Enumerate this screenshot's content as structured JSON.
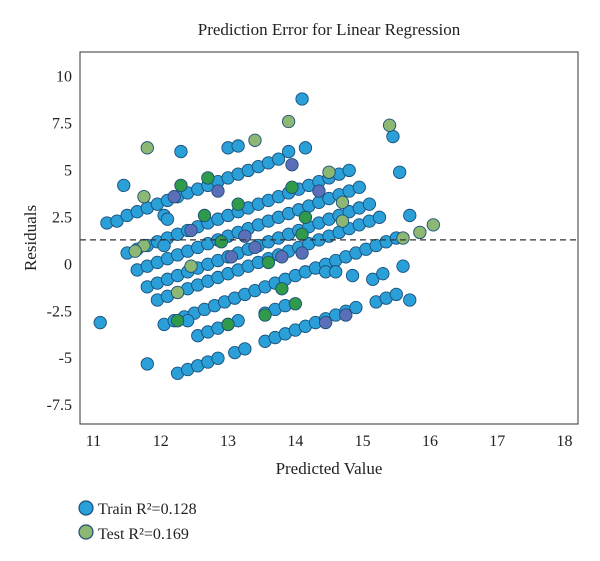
{
  "chart_data": {
    "type": "scatter",
    "title": "Prediction Error for Linear Regression",
    "xlabel": "Predicted Value",
    "ylabel": "Residuals",
    "xlim": [
      10.8,
      18.2
    ],
    "ylim": [
      -8.5,
      11.3
    ],
    "xticks": [
      "11",
      "12",
      "13",
      "14",
      "15",
      "16",
      "17",
      "18"
    ],
    "yticks": [
      "10",
      "7.5",
      "5",
      "2.5",
      "0",
      "-2.5",
      "-5",
      "-7.5"
    ],
    "reference_line": {
      "y": 1.3,
      "style": "dashed"
    },
    "grid": false,
    "legend_position": "bottom-left",
    "colors": {
      "train": "#2a9fd8",
      "train_edge": "#1a4f7a",
      "test": "#8db873",
      "overlap_green": "#2e9a4a",
      "overlap_purple": "#5a6fb8",
      "line": "#333333"
    },
    "series": [
      {
        "name": "Train R²=0.128",
        "points": [
          [
            11.1,
            -3.1
          ],
          [
            11.2,
            2.2
          ],
          [
            11.35,
            2.3
          ],
          [
            11.45,
            4.2
          ],
          [
            11.5,
            2.6
          ],
          [
            11.65,
            2.8
          ],
          [
            11.8,
            3.0
          ],
          [
            11.95,
            3.2
          ],
          [
            12.1,
            3.4
          ],
          [
            12.25,
            3.6
          ],
          [
            12.4,
            3.8
          ],
          [
            12.55,
            4.0
          ],
          [
            12.7,
            4.2
          ],
          [
            12.85,
            4.4
          ],
          [
            13.0,
            4.6
          ],
          [
            13.15,
            4.8
          ],
          [
            13.3,
            5.0
          ],
          [
            13.45,
            5.2
          ],
          [
            13.6,
            5.4
          ],
          [
            13.75,
            5.6
          ],
          [
            11.5,
            0.6
          ],
          [
            11.65,
            0.8
          ],
          [
            11.8,
            1.0
          ],
          [
            11.95,
            1.2
          ],
          [
            12.1,
            1.4
          ],
          [
            12.25,
            1.6
          ],
          [
            12.4,
            1.8
          ],
          [
            12.55,
            2.0
          ],
          [
            12.7,
            2.2
          ],
          [
            12.85,
            2.4
          ],
          [
            13.0,
            2.6
          ],
          [
            13.15,
            2.8
          ],
          [
            13.3,
            3.0
          ],
          [
            13.45,
            3.2
          ],
          [
            13.6,
            3.4
          ],
          [
            13.75,
            3.6
          ],
          [
            13.9,
            3.8
          ],
          [
            14.05,
            4.0
          ],
          [
            14.2,
            4.2
          ],
          [
            14.35,
            4.4
          ],
          [
            14.5,
            4.6
          ],
          [
            14.65,
            4.8
          ],
          [
            14.8,
            5.0
          ],
          [
            11.65,
            -0.3
          ],
          [
            11.8,
            -0.1
          ],
          [
            11.95,
            0.1
          ],
          [
            12.1,
            0.3
          ],
          [
            12.25,
            0.5
          ],
          [
            12.4,
            0.7
          ],
          [
            12.55,
            0.9
          ],
          [
            12.7,
            1.1
          ],
          [
            12.85,
            1.3
          ],
          [
            13.0,
            1.5
          ],
          [
            13.15,
            1.7
          ],
          [
            13.3,
            1.9
          ],
          [
            13.45,
            2.1
          ],
          [
            13.6,
            2.3
          ],
          [
            13.75,
            2.5
          ],
          [
            13.9,
            2.7
          ],
          [
            14.05,
            2.9
          ],
          [
            14.2,
            3.1
          ],
          [
            14.35,
            3.3
          ],
          [
            14.5,
            3.5
          ],
          [
            14.65,
            3.7
          ],
          [
            14.8,
            3.9
          ],
          [
            14.95,
            4.1
          ],
          [
            11.8,
            -1.2
          ],
          [
            11.95,
            -1.0
          ],
          [
            12.1,
            -0.8
          ],
          [
            12.25,
            -0.6
          ],
          [
            12.4,
            -0.4
          ],
          [
            12.55,
            -0.2
          ],
          [
            12.7,
            0.0
          ],
          [
            12.85,
            0.2
          ],
          [
            13.0,
            0.4
          ],
          [
            13.15,
            0.6
          ],
          [
            13.3,
            0.8
          ],
          [
            13.45,
            1.0
          ],
          [
            13.6,
            1.2
          ],
          [
            13.75,
            1.4
          ],
          [
            13.9,
            1.6
          ],
          [
            14.05,
            1.8
          ],
          [
            14.2,
            2.0
          ],
          [
            14.35,
            2.2
          ],
          [
            14.5,
            2.4
          ],
          [
            14.65,
            2.6
          ],
          [
            14.8,
            2.8
          ],
          [
            14.95,
            3.0
          ],
          [
            15.1,
            3.2
          ],
          [
            11.95,
            -1.9
          ],
          [
            12.1,
            -1.7
          ],
          [
            12.25,
            -1.5
          ],
          [
            12.4,
            -1.3
          ],
          [
            12.55,
            -1.1
          ],
          [
            12.7,
            -0.9
          ],
          [
            12.85,
            -0.7
          ],
          [
            13.0,
            -0.5
          ],
          [
            13.15,
            -0.3
          ],
          [
            13.3,
            -0.1
          ],
          [
            13.45,
            0.1
          ],
          [
            13.6,
            0.3
          ],
          [
            13.75,
            0.5
          ],
          [
            13.9,
            0.7
          ],
          [
            14.05,
            0.9
          ],
          [
            14.2,
            1.1
          ],
          [
            14.35,
            1.3
          ],
          [
            14.5,
            1.5
          ],
          [
            14.65,
            1.7
          ],
          [
            14.8,
            1.9
          ],
          [
            14.95,
            2.1
          ],
          [
            15.1,
            2.3
          ],
          [
            15.25,
            2.5
          ],
          [
            12.05,
            -3.2
          ],
          [
            12.2,
            -3.0
          ],
          [
            12.35,
            -2.8
          ],
          [
            12.5,
            -2.6
          ],
          [
            12.65,
            -2.4
          ],
          [
            12.8,
            -2.2
          ],
          [
            12.95,
            -2.0
          ],
          [
            13.1,
            -1.8
          ],
          [
            13.25,
            -1.6
          ],
          [
            13.4,
            -1.4
          ],
          [
            13.55,
            -1.2
          ],
          [
            13.7,
            -1.0
          ],
          [
            13.85,
            -0.8
          ],
          [
            14.0,
            -0.6
          ],
          [
            14.15,
            -0.4
          ],
          [
            14.3,
            -0.2
          ],
          [
            14.45,
            0.0
          ],
          [
            14.6,
            0.2
          ],
          [
            14.75,
            0.4
          ],
          [
            14.9,
            0.6
          ],
          [
            15.05,
            0.8
          ],
          [
            15.2,
            1.0
          ],
          [
            15.35,
            1.2
          ],
          [
            15.5,
            1.4
          ],
          [
            12.25,
            -5.8
          ],
          [
            12.4,
            -5.6
          ],
          [
            12.55,
            -5.4
          ],
          [
            12.7,
            -5.2
          ],
          [
            12.85,
            -5.0
          ],
          [
            13.1,
            -4.7
          ],
          [
            13.25,
            -4.5
          ],
          [
            13.55,
            -4.1
          ],
          [
            13.7,
            -3.9
          ],
          [
            13.85,
            -3.7
          ],
          [
            14.0,
            -3.5
          ],
          [
            14.15,
            -3.3
          ],
          [
            14.3,
            -3.1
          ],
          [
            14.45,
            -2.9
          ],
          [
            14.6,
            -2.7
          ],
          [
            14.75,
            -2.5
          ],
          [
            14.9,
            -2.3
          ],
          [
            15.2,
            -2.0
          ],
          [
            15.35,
            -1.8
          ],
          [
            15.5,
            -1.6
          ],
          [
            12.55,
            -3.8
          ],
          [
            12.7,
            -3.6
          ],
          [
            12.85,
            -3.4
          ],
          [
            13.0,
            -3.2
          ],
          [
            13.15,
            -3.0
          ],
          [
            13.55,
            -2.6
          ],
          [
            13.7,
            -2.4
          ],
          [
            13.85,
            -2.2
          ],
          [
            11.8,
            -5.3
          ],
          [
            12.05,
            2.6
          ],
          [
            12.3,
            6.0
          ],
          [
            13.0,
            6.2
          ],
          [
            13.15,
            6.3
          ],
          [
            13.9,
            6.0
          ],
          [
            14.1,
            8.8
          ],
          [
            14.15,
            6.2
          ],
          [
            15.45,
            6.8
          ],
          [
            15.55,
            4.9
          ],
          [
            15.6,
            -0.1
          ],
          [
            15.7,
            2.6
          ],
          [
            15.7,
            -1.9
          ],
          [
            14.85,
            -0.6
          ],
          [
            14.45,
            -0.4
          ],
          [
            14.6,
            -0.4
          ],
          [
            15.15,
            -0.8
          ],
          [
            15.3,
            -0.5
          ],
          [
            12.4,
            -3.0
          ],
          [
            12.05,
            1.0
          ],
          [
            12.1,
            2.4
          ]
        ]
      },
      {
        "name": "Test R²=0.169",
        "points": [
          [
            11.75,
            1.0
          ],
          [
            11.62,
            0.7
          ],
          [
            11.75,
            3.6
          ],
          [
            11.8,
            6.2
          ],
          [
            12.45,
            -0.1
          ],
          [
            12.25,
            -1.5
          ],
          [
            13.4,
            6.6
          ],
          [
            13.9,
            7.6
          ],
          [
            14.5,
            4.9
          ],
          [
            14.7,
            2.3
          ],
          [
            14.7,
            3.3
          ],
          [
            15.4,
            7.4
          ],
          [
            15.6,
            1.4
          ],
          [
            15.85,
            1.7
          ],
          [
            16.05,
            2.1
          ]
        ]
      },
      {
        "name": "",
        "points": [
          [
            12.3,
            4.2
          ],
          [
            12.7,
            4.6
          ],
          [
            12.65,
            2.6
          ],
          [
            12.9,
            1.2
          ],
          [
            13.15,
            3.2
          ],
          [
            13.55,
            -2.7
          ],
          [
            13.6,
            0.1
          ],
          [
            13.8,
            -1.3
          ],
          [
            13.95,
            4.1
          ],
          [
            14.0,
            -2.1
          ],
          [
            14.15,
            2.5
          ],
          [
            14.1,
            1.6
          ],
          [
            12.25,
            -3.0
          ],
          [
            13.0,
            -3.2
          ]
        ]
      },
      {
        "name": "",
        "points": [
          [
            12.2,
            3.6
          ],
          [
            12.45,
            1.8
          ],
          [
            12.85,
            3.9
          ],
          [
            13.05,
            0.4
          ],
          [
            13.25,
            1.5
          ],
          [
            13.4,
            0.9
          ],
          [
            13.95,
            5.3
          ],
          [
            14.1,
            0.6
          ],
          [
            14.35,
            3.9
          ],
          [
            14.45,
            -3.1
          ],
          [
            14.75,
            -2.7
          ],
          [
            13.8,
            0.4
          ]
        ]
      }
    ]
  }
}
